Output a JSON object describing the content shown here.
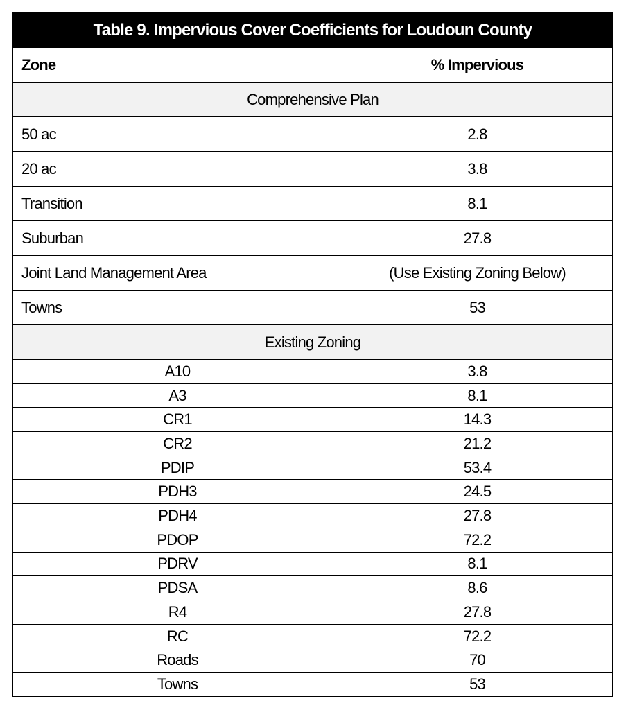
{
  "table": {
    "title": "Table 9.  Impervious Cover Coefficients for Loudoun County",
    "header": [
      "Zone",
      "% Impervious"
    ],
    "sections": [
      {
        "title": "Comprehensive Plan",
        "rows": [
          [
            "50 ac",
            "2.8"
          ],
          [
            "20 ac",
            "3.8"
          ],
          [
            "Transition",
            "8.1"
          ],
          [
            "Suburban",
            "27.8"
          ],
          [
            "Joint Land Management Area",
            "(Use Existing Zoning Below)"
          ],
          [
            "Towns",
            "53"
          ]
        ]
      },
      {
        "title": "Existing Zoning",
        "rows": [
          [
            "A10",
            "3.8"
          ],
          [
            "A3",
            "8.1"
          ],
          [
            "CR1",
            "14.3"
          ],
          [
            "CR2",
            "21.2"
          ],
          [
            "PDIP",
            "53.4"
          ],
          [
            "PDH3",
            "24.5"
          ],
          [
            "PDH4",
            "27.8"
          ],
          [
            "PDOP",
            "72.2"
          ],
          [
            "PDRV",
            "8.1"
          ],
          [
            "PDSA",
            "8.6"
          ],
          [
            "R4",
            "27.8"
          ],
          [
            "RC",
            "72.2"
          ],
          [
            "Roads",
            "70"
          ],
          [
            "Towns",
            "53"
          ]
        ]
      }
    ]
  }
}
